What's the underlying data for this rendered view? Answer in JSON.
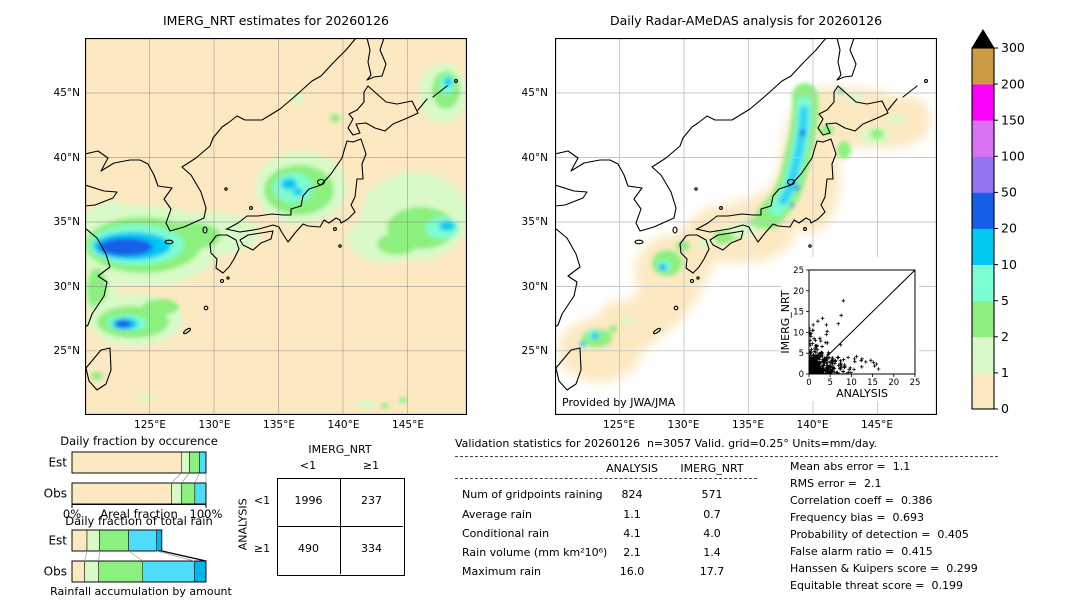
{
  "figure": {
    "left_map": {
      "title": "IMERG_NRT estimates for 20260126"
    },
    "right_map": {
      "title": "Daily Radar-AMeDAS analysis for 20260126",
      "credit": "Provided by JWA/JMA"
    },
    "lat_ticks": [
      "45°N",
      "40°N",
      "35°N",
      "30°N",
      "25°N"
    ],
    "lon_ticks": [
      "125°E",
      "130°E",
      "135°E",
      "140°E",
      "145°E"
    ]
  },
  "stats": {
    "title": "Validation statistics for 20260126  n=3057 Valid. grid=0.25° Units=mm/day.",
    "col1": "ANALYSIS",
    "col2": "IMERG_NRT",
    "rows": [
      [
        "Num of gridpoints raining",
        "824",
        "571"
      ],
      [
        "Average rain",
        "1.1",
        "0.7"
      ],
      [
        "Conditional rain",
        "4.1",
        "4.0"
      ],
      [
        "Rain volume (mm km²10⁶)",
        "2.1",
        "1.4"
      ],
      [
        "Maximum rain",
        "16.0",
        "17.7"
      ]
    ],
    "metrics": [
      [
        "Mean abs error",
        "1.1"
      ],
      [
        "RMS error",
        "2.1"
      ],
      [
        "Correlation coeff",
        "0.386"
      ],
      [
        "Frequency bias",
        "0.693"
      ],
      [
        "Probability of detection",
        "0.405"
      ],
      [
        "False alarm ratio",
        "0.415"
      ],
      [
        "Hanssen & Kuipers score",
        "0.299"
      ],
      [
        "Equitable threat score",
        "0.199"
      ]
    ]
  },
  "chart_data": [
    {
      "id": "occurrence_fraction",
      "type": "bar",
      "orientation": "horizontal_stacked",
      "title": "Daily fraction by occurence",
      "xlabel": "Areal fraction",
      "x_tick_labels": [
        "0%",
        "100%"
      ],
      "xlim": [
        0,
        1
      ],
      "categories": [
        "Est",
        "Obs"
      ],
      "series": [
        {
          "name": "Est",
          "values": [
            0.816,
            0.061,
            0.075,
            0.048
          ]
        },
        {
          "name": "Obs",
          "values": [
            0.742,
            0.074,
            0.101,
            0.083
          ]
        }
      ],
      "segment_colors": [
        "#fce9c2",
        "#d9f9c8",
        "#8cf07e",
        "#4fdcfa"
      ]
    },
    {
      "id": "total_rain_fraction",
      "type": "bar",
      "orientation": "horizontal_stacked",
      "title": "Daily fraction of total rain",
      "xlabel": "Rainfall accumulation by amount",
      "categories": [
        "Est",
        "Obs"
      ],
      "series": [
        {
          "name": "Est",
          "values": [
            0.112,
            0.094,
            0.216,
            0.21,
            0.038
          ]
        },
        {
          "name": "Obs",
          "values": [
            0.094,
            0.105,
            0.329,
            0.385,
            0.087
          ]
        }
      ],
      "segment_colors": [
        "#fce9c2",
        "#d9f9c8",
        "#8cf07e",
        "#4fdcfa",
        "#00b4ee"
      ],
      "note": "Est bar length scaled to 0.67 of Obs (rain volume ratio 1.4/2.1)"
    },
    {
      "id": "contingency_table",
      "type": "table",
      "col_group_label": "IMERG_NRT",
      "row_group_label": "ANALYSIS",
      "col_labels": [
        "<1",
        "≥1"
      ],
      "row_labels": [
        "<1",
        "≥1"
      ],
      "values": [
        [
          1996,
          237
        ],
        [
          490,
          334
        ]
      ]
    },
    {
      "id": "scatter_inset",
      "type": "scatter",
      "xlabel": "ANALYSIS",
      "ylabel": "IMERG_NRT",
      "xlim": [
        0,
        25
      ],
      "ylim": [
        0,
        25
      ],
      "ticks": [
        0,
        5,
        10,
        15,
        20,
        25
      ],
      "identity_line": true,
      "marker": "+",
      "cluster": {
        "seed": 42,
        "n_exp": 380,
        "scale": 1.8,
        "n_vert_arm": 50,
        "n_horiz_arm": 45
      },
      "outliers": [
        [
          8.1,
          17.6
        ],
        [
          7.6,
          14.1
        ],
        [
          3.2,
          13.4
        ],
        [
          2.1,
          12.7
        ],
        [
          6.9,
          12.1
        ],
        [
          4.1,
          11.8
        ],
        [
          12.3,
          3.2
        ],
        [
          13.4,
          2.9
        ],
        [
          14.6,
          3.3
        ],
        [
          15.9,
          2.4
        ],
        [
          11.2,
          4.2
        ],
        [
          15.2,
          2.8
        ]
      ]
    },
    {
      "id": "colorbar",
      "type": "colorbar",
      "units": "mm/day",
      "levels": [
        0,
        1,
        2,
        5,
        10,
        20,
        50,
        100,
        150,
        200,
        300
      ],
      "colors": [
        "#fce9c2",
        "#d9f9c8",
        "#8cf07e",
        "#7dfdd3",
        "#00c9f2",
        "#155fe8",
        "#9673f2",
        "#d973f2",
        "#fb00fb",
        "#cd9b41"
      ],
      "overflow_arrow_color": "#000000"
    }
  ]
}
